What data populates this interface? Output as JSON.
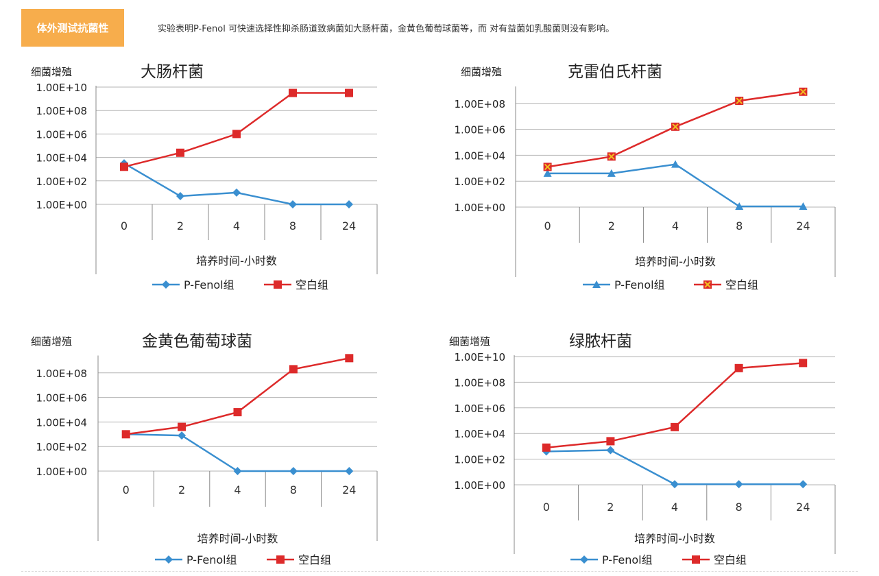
{
  "header": {
    "badge": "体外测试抗菌性",
    "description": "实验表明P-Fenol 可快速选择性抑杀肠道致病菌如大肠杆菌，金黄色葡萄球菌等，而 对有益菌如乳酸菌则没有影响。"
  },
  "colors": {
    "pfenol": "#3a8fd0",
    "blank": "#dd2a2a",
    "grid": "#b3b3b3",
    "axis": "#888888",
    "cross": "#f0c020"
  },
  "chart_data": [
    {
      "type": "line",
      "title": "大肠杆菌",
      "ylabel": "细菌增殖",
      "xlabel": "培养时间-小时数",
      "categories": [
        "0",
        "2",
        "4",
        "8",
        "24"
      ],
      "y_scale": "log10",
      "y_ticks": [
        "1.00E+00",
        "1.00E+02",
        "1.00E+04",
        "1.00E+06",
        "1.00E+08",
        "1.00E+10"
      ],
      "ylim_exp": [
        0,
        10
      ],
      "grid": true,
      "legend_position": "bottom",
      "series": [
        {
          "name": "P-Fenol组",
          "marker": "diamond",
          "log10_values": [
            3.5,
            0.7,
            1.0,
            0,
            0
          ]
        },
        {
          "name": "空白组",
          "marker": "square",
          "log10_values": [
            3.2,
            4.4,
            6.0,
            9.5,
            9.5
          ]
        }
      ]
    },
    {
      "type": "line",
      "title": "克雷伯氏杆菌",
      "ylabel": "细菌增殖",
      "xlabel": "培养时间-小时数",
      "categories": [
        "0",
        "2",
        "4",
        "8",
        "24"
      ],
      "y_scale": "log10",
      "y_ticks": [
        "1.00E+00",
        "1.00E+02",
        "1.00E+04",
        "1.00E+06",
        "1.00E+08"
      ],
      "ylim_exp": [
        0,
        9.2
      ],
      "grid": true,
      "legend_position": "bottom",
      "series": [
        {
          "name": "P-Fenol组",
          "marker": "triangle",
          "log10_values": [
            2.6,
            2.6,
            3.3,
            0.05,
            0.05
          ]
        },
        {
          "name": "空白组",
          "marker": "square-cross",
          "log10_values": [
            3.1,
            3.9,
            6.2,
            8.2,
            8.9
          ]
        }
      ]
    },
    {
      "type": "line",
      "title": "金黄色葡萄球菌",
      "ylabel": "细菌增殖",
      "xlabel": "培养时间-小时数",
      "categories": [
        "0",
        "2",
        "4",
        "8",
        "24"
      ],
      "y_scale": "log10",
      "y_ticks": [
        "1.00E+00",
        "1.00E+02",
        "1.00E+04",
        "1.00E+06",
        "1.00E+08"
      ],
      "ylim_exp": [
        0,
        9.3
      ],
      "grid": true,
      "legend_position": "bottom",
      "series": [
        {
          "name": "P-Fenol组",
          "marker": "diamond",
          "log10_values": [
            3.0,
            2.9,
            0,
            0,
            0
          ]
        },
        {
          "name": "空白组",
          "marker": "square",
          "log10_values": [
            3.0,
            3.6,
            4.8,
            8.3,
            9.2
          ]
        }
      ]
    },
    {
      "type": "line",
      "title": "绿脓杆菌",
      "ylabel": "细菌增殖",
      "xlabel": "培养时间-小时数",
      "categories": [
        "0",
        "2",
        "4",
        "8",
        "24"
      ],
      "y_scale": "log10",
      "y_ticks": [
        "1.00E+00",
        "1.00E+02",
        "1.00E+04",
        "1.00E+06",
        "1.00E+08",
        "1.00E+10"
      ],
      "ylim_exp": [
        0,
        10
      ],
      "grid": true,
      "legend_position": "bottom",
      "series": [
        {
          "name": "P-Fenol组",
          "marker": "diamond",
          "log10_values": [
            2.6,
            2.7,
            0.05,
            0.05,
            0.05
          ]
        },
        {
          "name": "空白组",
          "marker": "square",
          "log10_values": [
            2.9,
            3.4,
            4.5,
            9.1,
            9.5
          ]
        }
      ]
    }
  ]
}
